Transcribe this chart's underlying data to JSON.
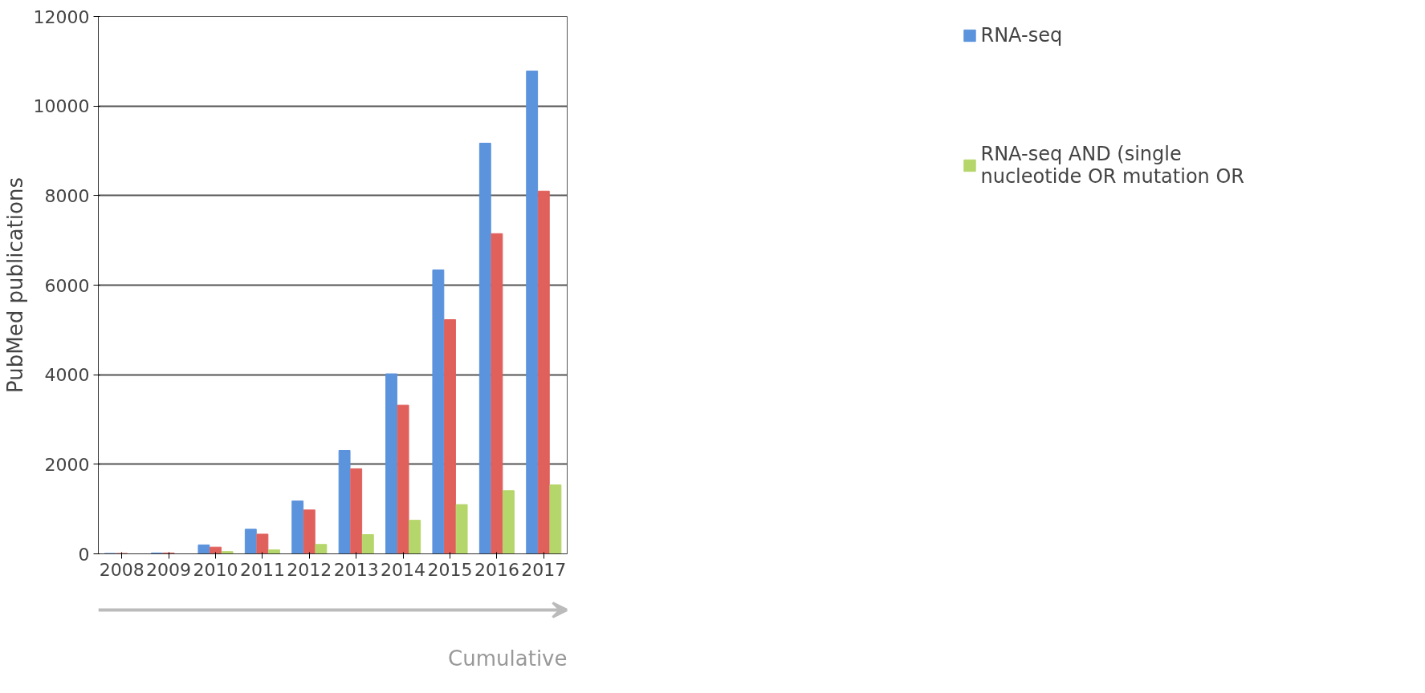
{
  "chart_data": {
    "type": "bar",
    "ylabel": "PubMed publications",
    "categories": [
      "2008",
      "2009",
      "2010",
      "2011",
      "2012",
      "2013",
      "2014",
      "2015",
      "2016",
      "2017"
    ],
    "series": [
      {
        "name": "RNA-seq",
        "color": "#5b93dc",
        "values": [
          10,
          20,
          200,
          550,
          1180,
          2310,
          4020,
          6340,
          9170,
          10780
        ]
      },
      {
        "color": "#e0605c",
        "values": [
          10,
          20,
          150,
          440,
          980,
          1900,
          3320,
          5230,
          7150,
          8100
        ]
      },
      {
        "name": "RNA-seq AND (single\nnucleotide OR mutation OR",
        "color": "#b5d66a",
        "values": [
          0,
          0,
          50,
          90,
          210,
          430,
          750,
          1100,
          1410,
          1540
        ]
      }
    ],
    "ylim": [
      0,
      12000
    ],
    "yticks": [
      0,
      2000,
      4000,
      6000,
      8000,
      10000,
      12000
    ],
    "grid": "y",
    "legend": "right",
    "annotations": [
      "Cumulative"
    ]
  }
}
